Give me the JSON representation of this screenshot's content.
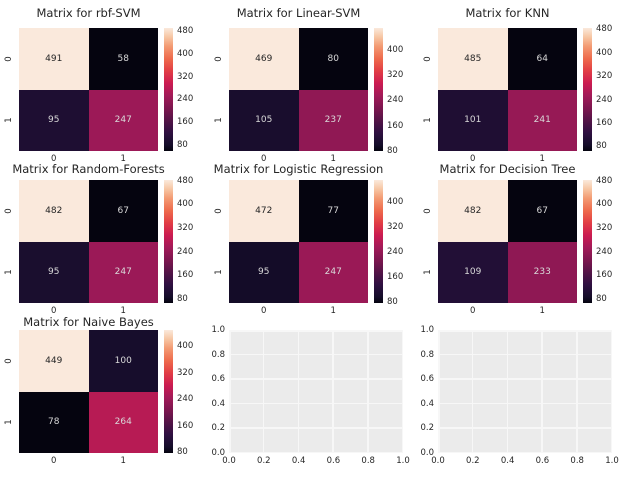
{
  "figure": {
    "background": "#ffffff",
    "title_color": "#262626",
    "tick_color": "#262626",
    "annot_dark": "#262626",
    "annot_light": "#d9d9d9",
    "empty_bg": "#ebebeb",
    "grid_color": "#f7f7f7",
    "colormap_name": "rocket",
    "rocket_stops": [
      [
        0.0,
        "#05040f"
      ],
      [
        0.05,
        "#150d2a"
      ],
      [
        0.15,
        "#2f1041"
      ],
      [
        0.25,
        "#541447"
      ],
      [
        0.35,
        "#7d164f"
      ],
      [
        0.45,
        "#a11a58"
      ],
      [
        0.55,
        "#cb1b51"
      ],
      [
        0.65,
        "#e13d45"
      ],
      [
        0.75,
        "#ee6a4c"
      ],
      [
        0.85,
        "#f39a72"
      ],
      [
        0.93,
        "#f7c8a6"
      ],
      [
        1.0,
        "#fae9dc"
      ]
    ]
  },
  "chart_data": [
    {
      "type": "heatmap",
      "title": "Matrix for rbf-SVM",
      "x_labels": [
        "0",
        "1"
      ],
      "y_labels": [
        "0",
        "1"
      ],
      "matrix": [
        [
          491,
          58
        ],
        [
          95,
          247
        ]
      ],
      "colorbar_ticks": [
        480,
        400,
        320,
        240,
        160,
        80
      ]
    },
    {
      "type": "heatmap",
      "title": "Matrix for Linear-SVM",
      "x_labels": [
        "0",
        "1"
      ],
      "y_labels": [
        "0",
        "1"
      ],
      "matrix": [
        [
          469,
          80
        ],
        [
          105,
          237
        ]
      ],
      "colorbar_ticks": [
        400,
        320,
        240,
        160,
        80
      ]
    },
    {
      "type": "heatmap",
      "title": "Matrix for KNN",
      "x_labels": [
        "0",
        "1"
      ],
      "y_labels": [
        "0",
        "1"
      ],
      "matrix": [
        [
          485,
          64
        ],
        [
          101,
          241
        ]
      ],
      "colorbar_ticks": [
        480,
        400,
        320,
        240,
        160,
        80
      ]
    },
    {
      "type": "heatmap",
      "title": "Matrix for Random-Forests",
      "x_labels": [
        "0",
        "1"
      ],
      "y_labels": [
        "0",
        "1"
      ],
      "matrix": [
        [
          482,
          67
        ],
        [
          95,
          247
        ]
      ],
      "colorbar_ticks": [
        480,
        400,
        320,
        240,
        160,
        80
      ]
    },
    {
      "type": "heatmap",
      "title": "Matrix for Logistic Regression",
      "x_labels": [
        "0",
        "1"
      ],
      "y_labels": [
        "0",
        "1"
      ],
      "matrix": [
        [
          472,
          77
        ],
        [
          95,
          247
        ]
      ],
      "colorbar_ticks": [
        400,
        320,
        240,
        160,
        80
      ]
    },
    {
      "type": "heatmap",
      "title": "Matrix for Decision Tree",
      "x_labels": [
        "0",
        "1"
      ],
      "y_labels": [
        "0",
        "1"
      ],
      "matrix": [
        [
          482,
          67
        ],
        [
          109,
          233
        ]
      ],
      "colorbar_ticks": [
        480,
        400,
        320,
        240,
        160,
        80
      ]
    },
    {
      "type": "heatmap",
      "title": "Matrix for Naive Bayes",
      "x_labels": [
        "0",
        "1"
      ],
      "y_labels": [
        "0",
        "1"
      ],
      "matrix": [
        [
          449,
          100
        ],
        [
          78,
          264
        ]
      ],
      "colorbar_ticks": [
        400,
        320,
        240,
        160,
        80
      ]
    },
    {
      "type": "empty",
      "x_tick_labels": [
        "0.0",
        "0.2",
        "0.4",
        "0.6",
        "0.8",
        "1.0"
      ],
      "y_tick_labels": [
        "0.0",
        "0.2",
        "0.4",
        "0.6",
        "0.8",
        "1.0"
      ],
      "xlim": [
        0.0,
        1.0
      ],
      "ylim": [
        0.0,
        1.0
      ],
      "grid": true
    },
    {
      "type": "empty",
      "x_tick_labels": [
        "0.0",
        "0.2",
        "0.4",
        "0.6",
        "0.8",
        "1.0"
      ],
      "y_tick_labels": [
        "0.0",
        "0.2",
        "0.4",
        "0.6",
        "0.8",
        "1.0"
      ],
      "xlim": [
        0.0,
        1.0
      ],
      "ylim": [
        0.0,
        1.0
      ],
      "grid": true
    }
  ]
}
